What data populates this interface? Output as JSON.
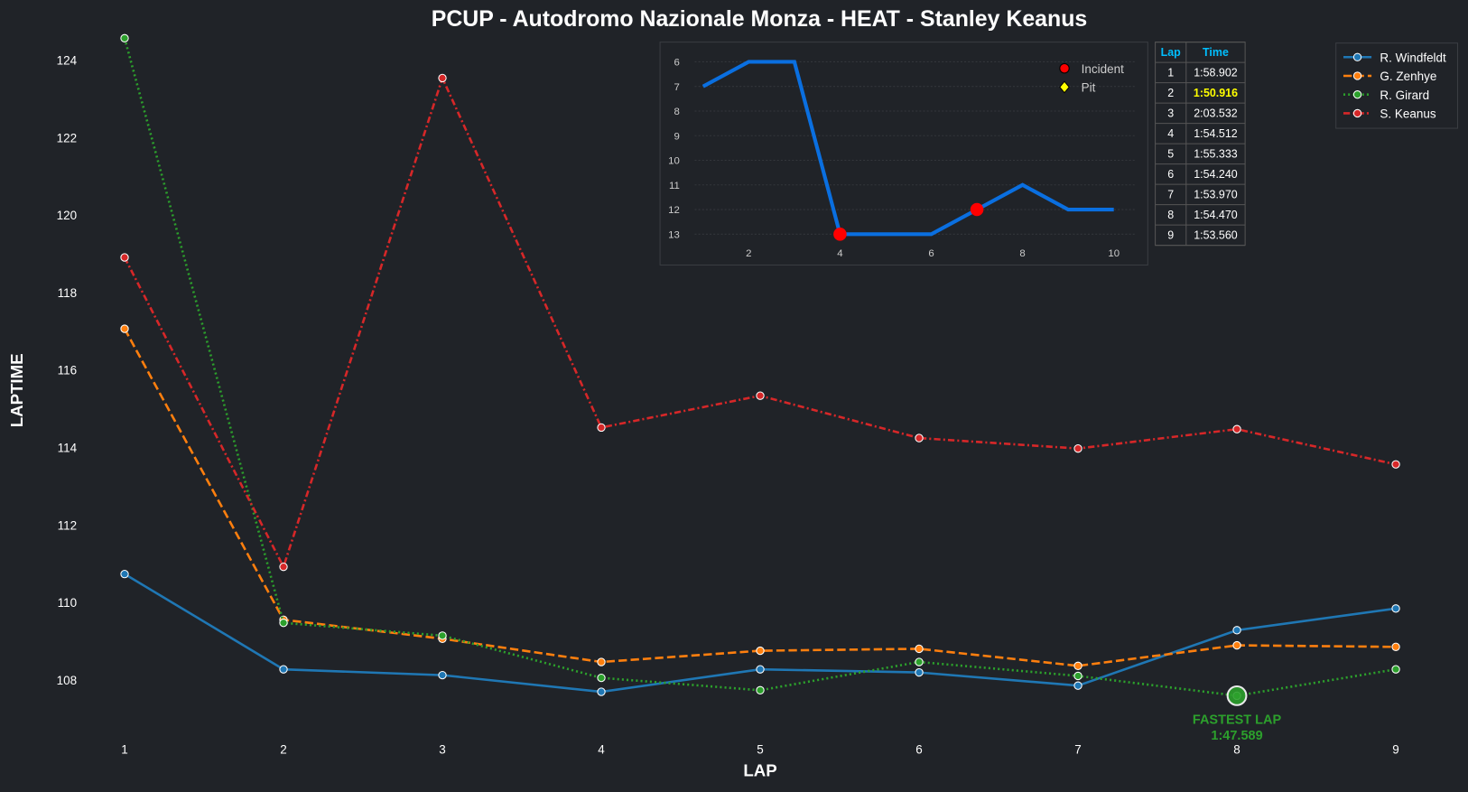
{
  "chart_data": {
    "type": "line",
    "title": "PCUP - Autodromo Nazionale Monza - HEAT - Stanley Keanus",
    "xlabel": "LAP",
    "ylabel": "LAPTIME",
    "x": [
      1,
      2,
      3,
      4,
      5,
      6,
      7,
      8,
      9
    ],
    "ylim": [
      106.6,
      124.7
    ],
    "yticks": [
      108,
      110,
      112,
      114,
      116,
      118,
      120,
      122,
      124
    ],
    "legend_position": "top-right",
    "series": [
      {
        "name": "R. Windfeldt",
        "color": "#1f77b4",
        "dash": "solid",
        "values": [
          110.73,
          108.27,
          108.12,
          107.69,
          108.27,
          108.19,
          107.85,
          109.28,
          109.84
        ]
      },
      {
        "name": "G. Zenhye",
        "color": "#ff7f0e",
        "dash": "dashed",
        "values": [
          117.06,
          109.55,
          109.06,
          108.46,
          108.75,
          108.8,
          108.36,
          108.89,
          108.85
        ]
      },
      {
        "name": "R. Girard",
        "color": "#2ca02c",
        "dash": "dotted",
        "values": [
          124.56,
          109.47,
          109.14,
          108.05,
          107.73,
          108.46,
          108.1,
          107.589,
          108.27
        ]
      },
      {
        "name": "S. Keanus",
        "color": "#d62728",
        "dash": "dashdot",
        "values": [
          118.902,
          110.916,
          123.532,
          114.512,
          115.333,
          114.24,
          113.97,
          114.47,
          113.56
        ]
      }
    ],
    "annotation": {
      "label": "FASTEST LAP",
      "value_text": "1:47.589",
      "lap": 8,
      "value": 107.589,
      "color": "#2ca02c"
    },
    "inset": {
      "type": "line",
      "x": [
        1,
        2,
        3,
        4,
        5,
        6,
        7,
        8,
        9,
        10
      ],
      "positions": [
        7,
        6,
        6,
        13,
        13,
        13,
        12,
        11,
        12,
        12
      ],
      "ylim_inverted": [
        13.5,
        5.5
      ],
      "yticks": [
        6,
        7,
        8,
        9,
        10,
        11,
        12,
        13
      ],
      "xticks": [
        2,
        4,
        6,
        8,
        10
      ],
      "incident_laps": [
        4,
        7
      ],
      "pit_laps": [],
      "legend": [
        "Incident",
        "Pit"
      ],
      "line_color": "#0a6fe0"
    },
    "table": {
      "headers": [
        "Lap",
        "Time"
      ],
      "rows": [
        [
          "1",
          "1:58.902"
        ],
        [
          "2",
          "1:50.916"
        ],
        [
          "3",
          "2:03.532"
        ],
        [
          "4",
          "1:54.512"
        ],
        [
          "5",
          "1:55.333"
        ],
        [
          "6",
          "1:54.240"
        ],
        [
          "7",
          "1:53.970"
        ],
        [
          "8",
          "1:54.470"
        ],
        [
          "9",
          "1:53.560"
        ]
      ],
      "highlight_row": 1,
      "highlight_color": "#ffff00",
      "header_color": "#00bfff"
    }
  }
}
